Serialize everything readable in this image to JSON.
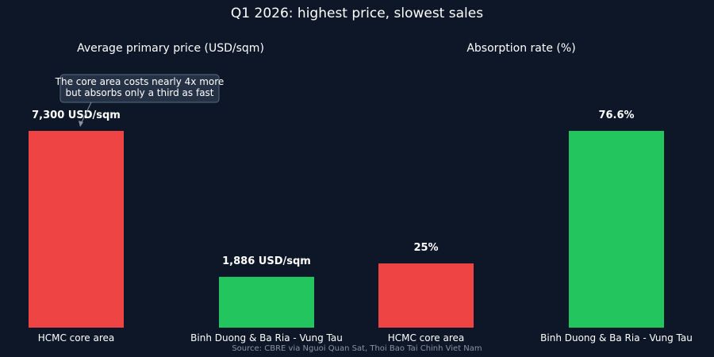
{
  "title": "Q1 2026: highest price, slowest sales",
  "source": "Source: CBRE via Nguoi Quan Sat, Thoi Bao Tai Chinh Viet Nam",
  "colors": {
    "background": "#0d1728",
    "red": "#ef4444",
    "green": "#22c55e"
  },
  "annotation": {
    "lines": [
      "The core area costs nearly 4x more",
      "but absorbs only a third as fast"
    ]
  },
  "chart_data": [
    {
      "type": "bar",
      "title": "Average primary price (USD/sqm)",
      "categories": [
        "HCMC core area",
        "Binh Duong & Ba Ria - Vung Tau"
      ],
      "values": [
        7300,
        1886
      ],
      "value_labels": [
        "7,300 USD/sqm",
        "1,886 USD/sqm"
      ],
      "colors": [
        "#ef4444",
        "#22c55e"
      ],
      "ylim": [
        0,
        7300
      ]
    },
    {
      "type": "bar",
      "title": "Absorption rate (%)",
      "categories": [
        "HCMC core area",
        "Binh Duong & Ba Ria - Vung Tau"
      ],
      "values": [
        25,
        76.6
      ],
      "value_labels": [
        "25%",
        "76.6%"
      ],
      "colors": [
        "#ef4444",
        "#22c55e"
      ],
      "ylim": [
        0,
        76.6
      ]
    }
  ]
}
